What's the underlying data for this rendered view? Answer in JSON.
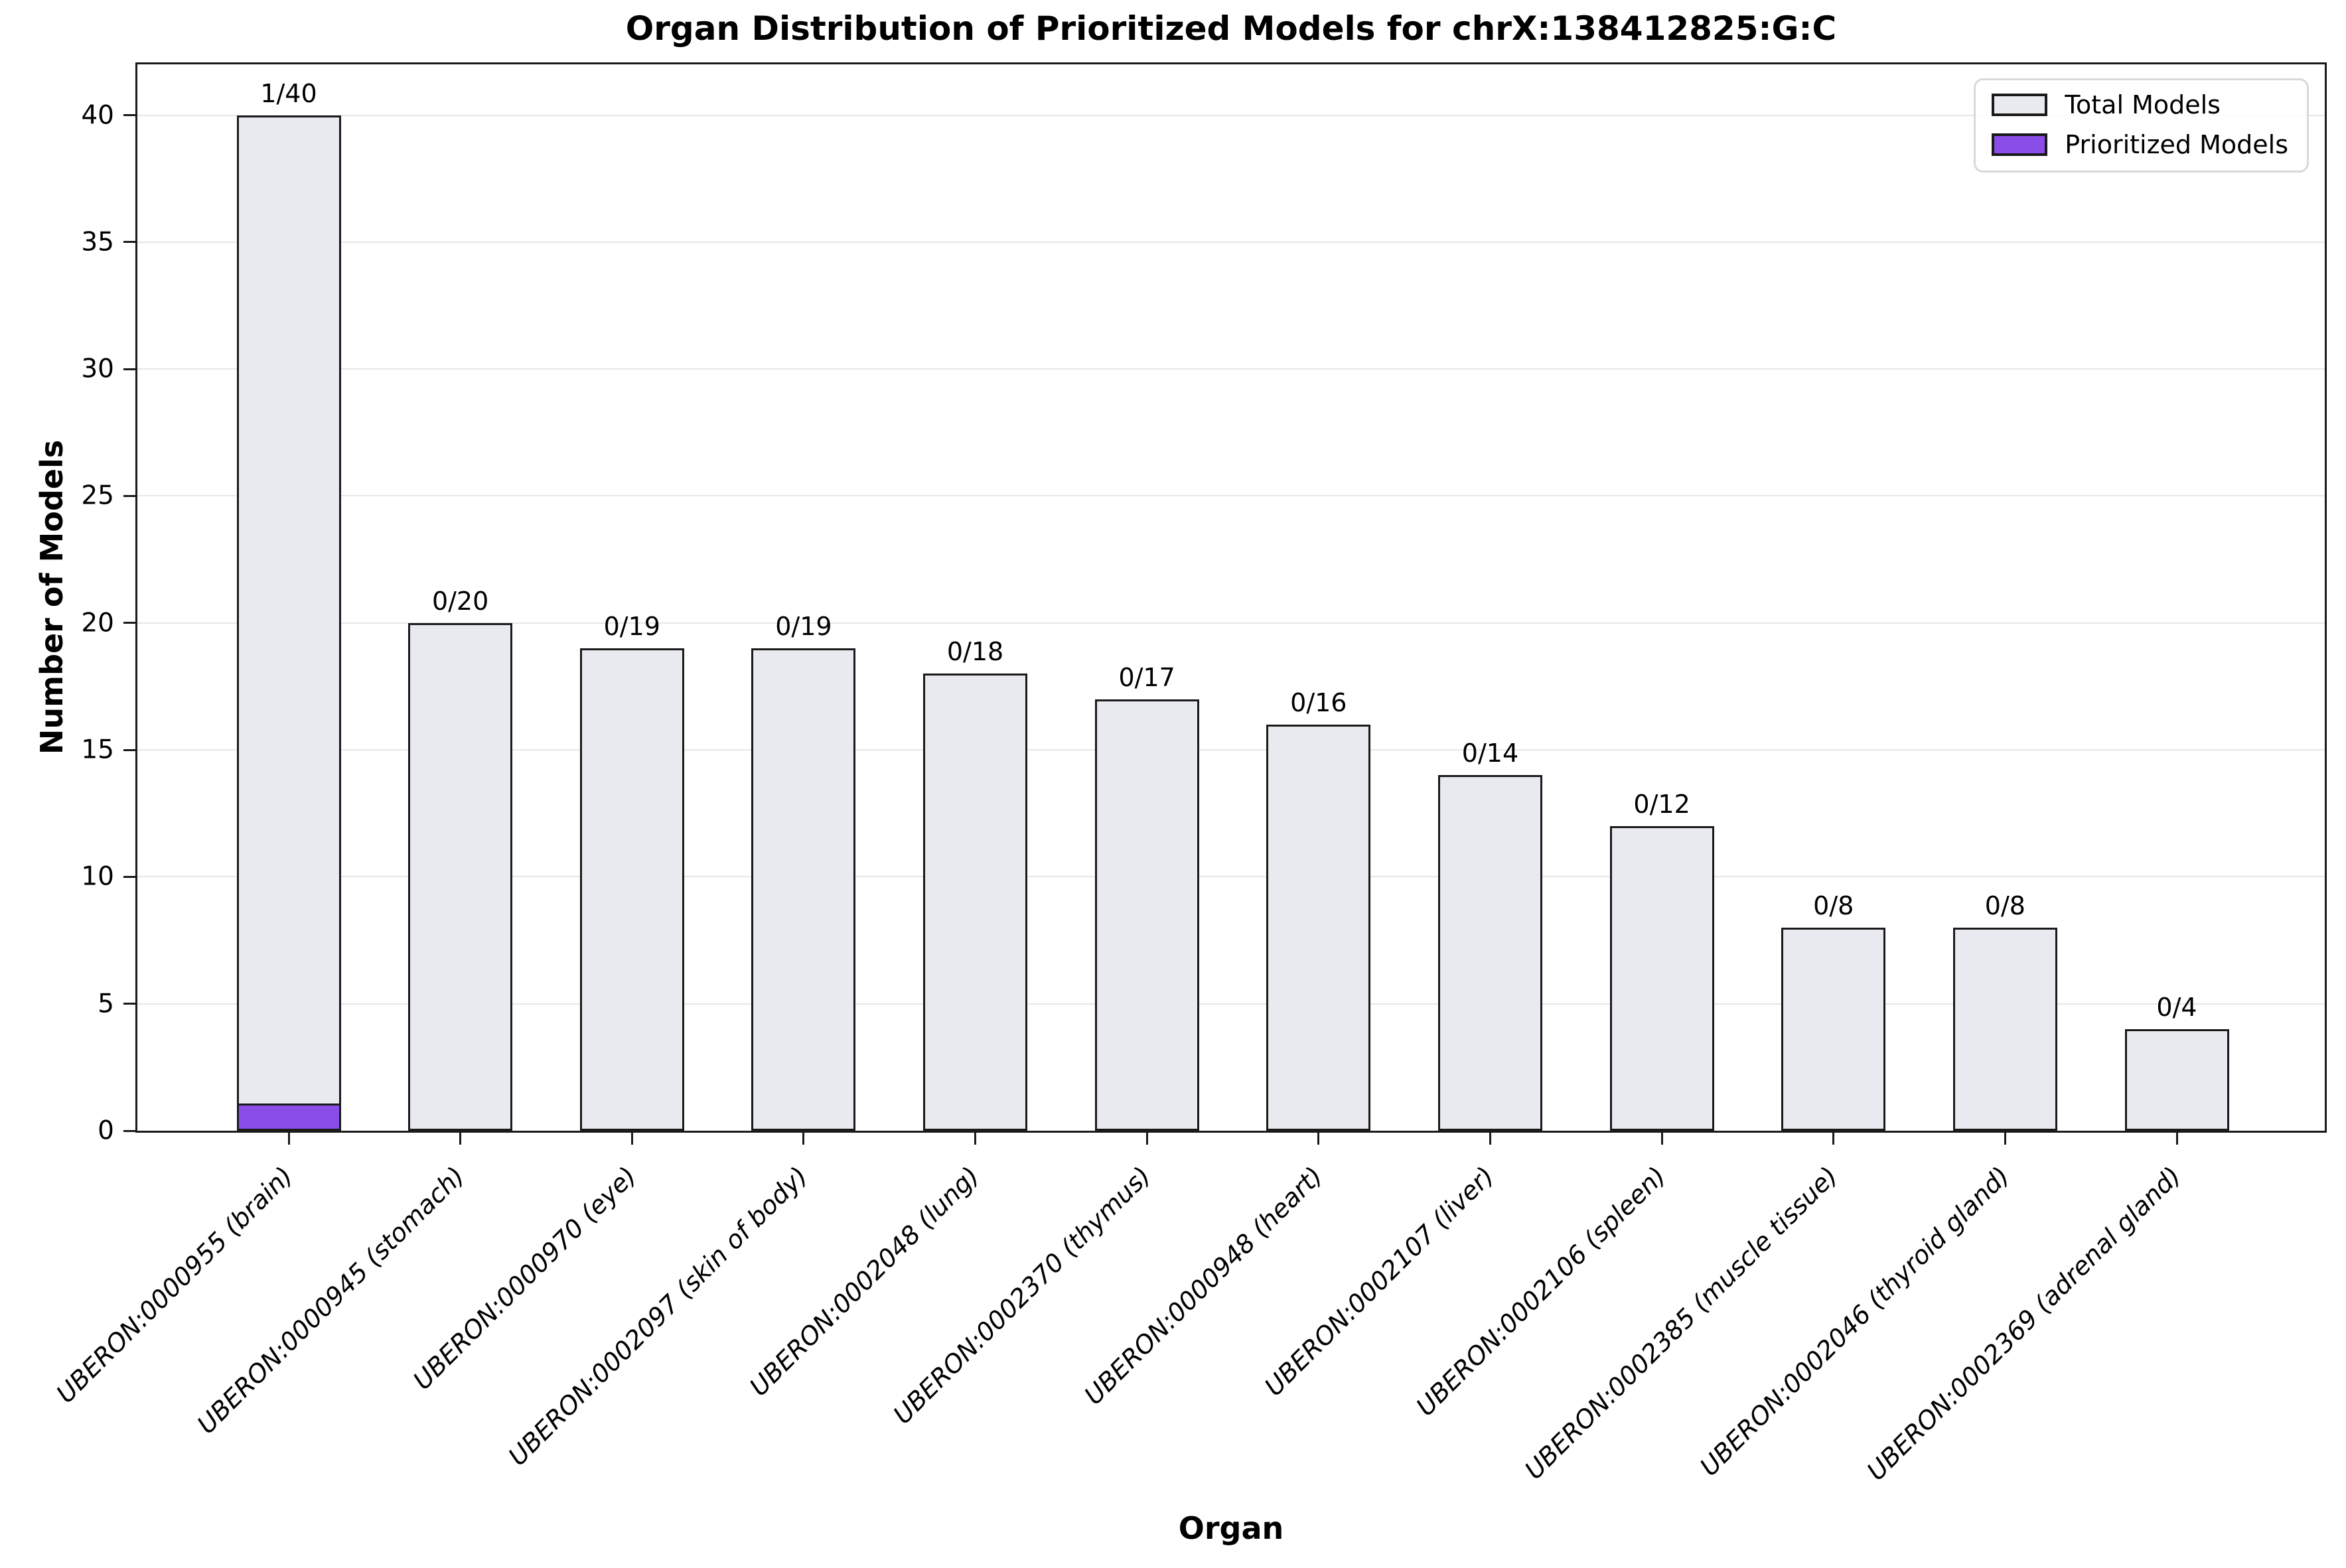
{
  "figure": {
    "title": "Organ Distribution of Prioritized Models for chrX:138412825:G:C",
    "x_axis_title": "Organ",
    "y_axis_title": "Number of Models"
  },
  "legend": {
    "position": "upper right",
    "items": [
      {
        "label": "Total Models",
        "swatch_color": "#E8EAF0"
      },
      {
        "label": "Prioritized Models",
        "swatch_color": "#8A4DE8"
      }
    ]
  },
  "chart_data": {
    "type": "bar",
    "title": "Organ Distribution of Prioritized Models for chrX:138412825:G:C",
    "xlabel": "Organ",
    "ylabel": "Number of Models",
    "categories": [
      "UBERON:0000955 (brain)",
      "UBERON:0000945 (stomach)",
      "UBERON:0000970 (eye)",
      "UBERON:0002097 (skin of body)",
      "UBERON:0002048 (lung)",
      "UBERON:0002370 (thymus)",
      "UBERON:0000948 (heart)",
      "UBERON:0002107 (liver)",
      "UBERON:0002106 (spleen)",
      "UBERON:0002385 (muscle tissue)",
      "UBERON:0002046 (thyroid gland)",
      "UBERON:0002369 (adrenal gland)"
    ],
    "series": [
      {
        "name": "Total Models",
        "color": "#E8EAF0",
        "values": [
          40,
          20,
          19,
          19,
          18,
          17,
          16,
          14,
          12,
          8,
          8,
          4
        ]
      },
      {
        "name": "Prioritized Models",
        "color": "#8A4DE8",
        "values": [
          1,
          0,
          0,
          0,
          0,
          0,
          0,
          0,
          0,
          0,
          0,
          0
        ]
      }
    ],
    "bar_labels": [
      "1/40",
      "0/20",
      "0/19",
      "0/19",
      "0/18",
      "0/17",
      "0/16",
      "0/14",
      "0/12",
      "0/8",
      "0/8",
      "0/4"
    ],
    "yticks": [
      0,
      5,
      10,
      15,
      20,
      25,
      30,
      35,
      40
    ],
    "ylim": [
      0,
      42
    ],
    "grid": true,
    "grid_color": "#e7e7e7",
    "bar_edge_color": "#1a1a1a",
    "background_color": "#ffffff",
    "x_tick_label_style": "italic, rotated 45deg, right-anchored",
    "legend_position": "upper right"
  }
}
